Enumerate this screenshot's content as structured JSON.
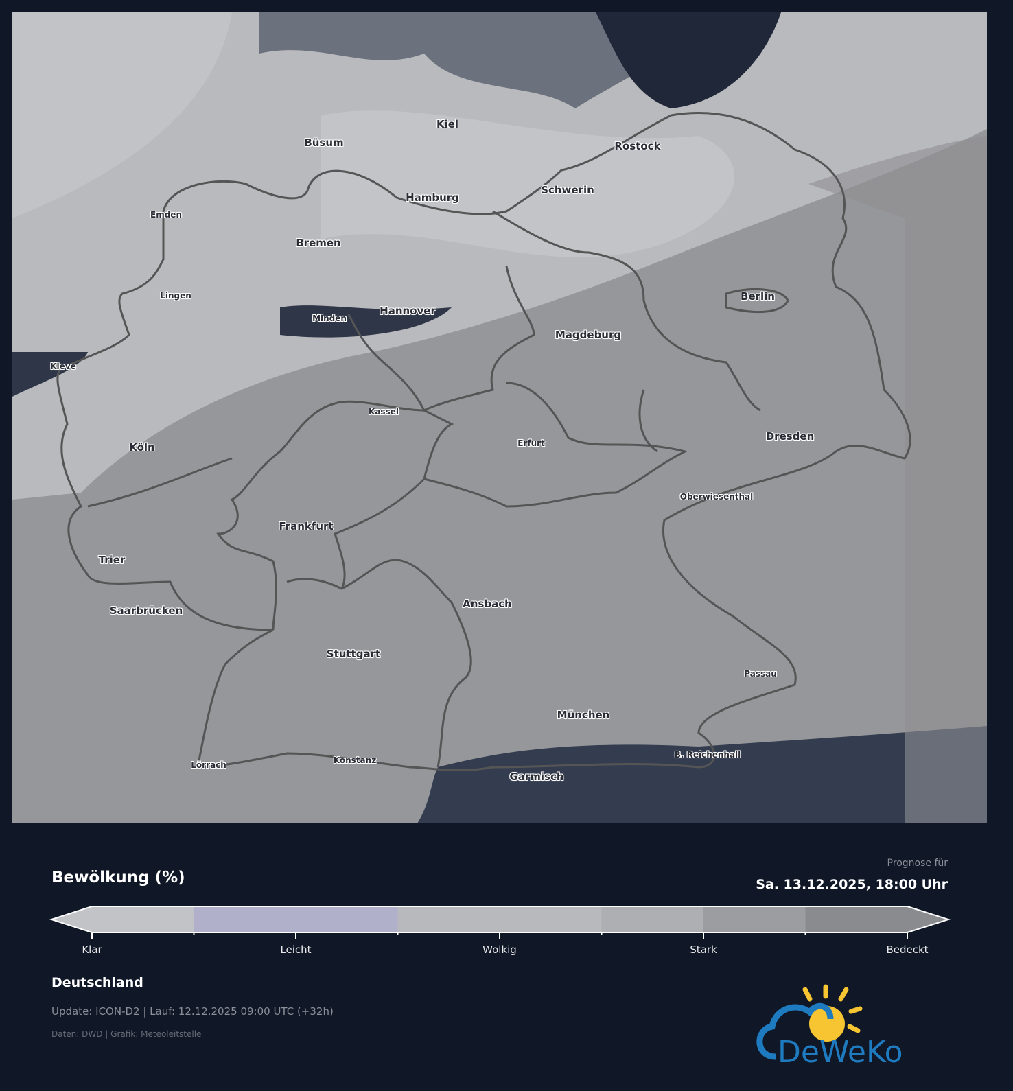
{
  "map": {
    "cities": [
      {
        "name": "Kiel",
        "size": "big"
      },
      {
        "name": "Büsum",
        "size": "big"
      },
      {
        "name": "Rostock",
        "size": "big"
      },
      {
        "name": "Hamburg",
        "size": "big"
      },
      {
        "name": "Schwerin",
        "size": "big"
      },
      {
        "name": "Emden",
        "size": "small"
      },
      {
        "name": "Bremen",
        "size": "big"
      },
      {
        "name": "Lingen",
        "size": "small"
      },
      {
        "name": "Berlin",
        "size": "big"
      },
      {
        "name": "Minden",
        "size": "small"
      },
      {
        "name": "Hannover",
        "size": "big"
      },
      {
        "name": "Magdeburg",
        "size": "big"
      },
      {
        "name": "Kleve",
        "size": "small"
      },
      {
        "name": "Kassel",
        "size": "small"
      },
      {
        "name": "Dresden",
        "size": "big"
      },
      {
        "name": "Köln",
        "size": "big"
      },
      {
        "name": "Erfurt",
        "size": "small"
      },
      {
        "name": "Oberwiesenthal",
        "size": "small"
      },
      {
        "name": "Frankfurt",
        "size": "big"
      },
      {
        "name": "Trier",
        "size": "big"
      },
      {
        "name": "Ansbach",
        "size": "big"
      },
      {
        "name": "Saarbrücken",
        "size": "big"
      },
      {
        "name": "Stuttgart",
        "size": "big"
      },
      {
        "name": "Passau",
        "size": "small"
      },
      {
        "name": "München",
        "size": "big"
      },
      {
        "name": "Lörrach",
        "size": "small"
      },
      {
        "name": "Konstanz",
        "size": "small"
      },
      {
        "name": "B. Reichenhall",
        "size": "small"
      },
      {
        "name": "Garmisch",
        "size": "big"
      }
    ],
    "colors": {
      "background": "#96979a",
      "clear": "#c2c3c7",
      "light": "#b0b0cb",
      "dark": "#2e3648",
      "border": "#555555"
    }
  },
  "legend": {
    "title": "Bewölkung (%)",
    "forecast_label": "Prognose für",
    "forecast_date": "Sa. 13.12.2025, 18:00 Uhr",
    "ticks": [
      "Klar",
      "Leicht",
      "Wolkig",
      "Stark",
      "Bedeckt"
    ],
    "segment_colors": [
      "#c2c3c7",
      "#b0b0cb",
      "#b8b9bc",
      "#aeafb2",
      "#9c9da0",
      "#8a8b8e"
    ]
  },
  "footer": {
    "region": "Deutschland",
    "update": "Update: ICON-D2 | Lauf: 12.12.2025 09:00 UTC (+32h)",
    "credits": "Daten: DWD | Grafik: Meteoleitstelle",
    "logo_text": "DeWeKo"
  }
}
